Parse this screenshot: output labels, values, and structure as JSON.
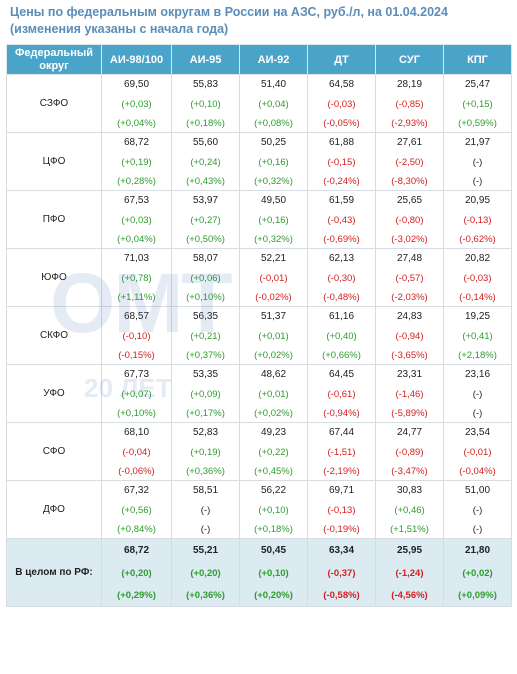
{
  "title_line1": "Цены по федеральным округам в России на АЗС, руб./л, на 01.04.2024",
  "title_line2": "(изменения указаны с начала года)",
  "watermark": {
    "text": "ОМТ",
    "sub": "20 ЛЕТ"
  },
  "colors": {
    "header_bg": "#4aa3c8",
    "positive": "#2e9c2e",
    "negative": "#d21f1f",
    "total_bg": "#dcebf1",
    "title": "#5b8db8"
  },
  "headers": [
    "Федеральный округ",
    "АИ-98/100",
    "АИ-95",
    "АИ-92",
    "ДТ",
    "СУГ",
    "КПГ"
  ],
  "rows": [
    {
      "region": "СЗФО",
      "cells": [
        {
          "v": "69,50",
          "d1": "(+0,03)",
          "d2": "(+0,04%)",
          "s1": "pos",
          "s2": "pos"
        },
        {
          "v": "55,83",
          "d1": "(+0,10)",
          "d2": "(+0,18%)",
          "s1": "pos",
          "s2": "pos"
        },
        {
          "v": "51,40",
          "d1": "(+0,04)",
          "d2": "(+0,08%)",
          "s1": "pos",
          "s2": "pos"
        },
        {
          "v": "64,58",
          "d1": "(-0,03)",
          "d2": "(-0,05%)",
          "s1": "neg",
          "s2": "neg"
        },
        {
          "v": "28,19",
          "d1": "(-0,85)",
          "d2": "(-2,93%)",
          "s1": "neg",
          "s2": "neg"
        },
        {
          "v": "25,47",
          "d1": "(+0,15)",
          "d2": "(+0,59%)",
          "s1": "pos",
          "s2": "pos"
        }
      ]
    },
    {
      "region": "ЦФО",
      "cells": [
        {
          "v": "68,72",
          "d1": "(+0,19)",
          "d2": "(+0,28%)",
          "s1": "pos",
          "s2": "pos"
        },
        {
          "v": "55,60",
          "d1": "(+0,24)",
          "d2": "(+0,43%)",
          "s1": "pos",
          "s2": "pos"
        },
        {
          "v": "50,25",
          "d1": "(+0,16)",
          "d2": "(+0,32%)",
          "s1": "pos",
          "s2": "pos"
        },
        {
          "v": "61,88",
          "d1": "(-0,15)",
          "d2": "(-0,24%)",
          "s1": "neg",
          "s2": "neg"
        },
        {
          "v": "27,61",
          "d1": "(-2,50)",
          "d2": "(-8,30%)",
          "s1": "neg",
          "s2": "neg"
        },
        {
          "v": "21,97",
          "d1": "(-)",
          "d2": "(-)",
          "s1": "neu",
          "s2": "neu"
        }
      ]
    },
    {
      "region": "ПФО",
      "cells": [
        {
          "v": "67,53",
          "d1": "(+0,03)",
          "d2": "(+0,04%)",
          "s1": "pos",
          "s2": "pos"
        },
        {
          "v": "53,97",
          "d1": "(+0,27)",
          "d2": "(+0,50%)",
          "s1": "pos",
          "s2": "pos"
        },
        {
          "v": "49,50",
          "d1": "(+0,16)",
          "d2": "(+0,32%)",
          "s1": "pos",
          "s2": "pos"
        },
        {
          "v": "61,59",
          "d1": "(-0,43)",
          "d2": "(-0,69%)",
          "s1": "neg",
          "s2": "neg"
        },
        {
          "v": "25,65",
          "d1": "(-0,80)",
          "d2": "(-3,02%)",
          "s1": "neg",
          "s2": "neg"
        },
        {
          "v": "20,95",
          "d1": "(-0,13)",
          "d2": "(-0,62%)",
          "s1": "neg",
          "s2": "neg"
        }
      ]
    },
    {
      "region": "ЮФО",
      "cells": [
        {
          "v": "71,03",
          "d1": "(+0,78)",
          "d2": "(+1,11%)",
          "s1": "pos",
          "s2": "pos"
        },
        {
          "v": "58,07",
          "d1": "(+0,06)",
          "d2": "(+0,10%)",
          "s1": "pos",
          "s2": "pos"
        },
        {
          "v": "52,21",
          "d1": "(-0,01)",
          "d2": "(-0,02%)",
          "s1": "neg",
          "s2": "neg"
        },
        {
          "v": "62,13",
          "d1": "(-0,30)",
          "d2": "(-0,48%)",
          "s1": "neg",
          "s2": "neg"
        },
        {
          "v": "27,48",
          "d1": "(-0,57)",
          "d2": "(-2,03%)",
          "s1": "neg",
          "s2": "neg"
        },
        {
          "v": "20,82",
          "d1": "(-0,03)",
          "d2": "(-0,14%)",
          "s1": "neg",
          "s2": "neg"
        }
      ]
    },
    {
      "region": "СКФО",
      "cells": [
        {
          "v": "68,57",
          "d1": "(-0,10)",
          "d2": "(-0,15%)",
          "s1": "neg",
          "s2": "neg"
        },
        {
          "v": "56,35",
          "d1": "(+0,21)",
          "d2": "(+0,37%)",
          "s1": "pos",
          "s2": "pos"
        },
        {
          "v": "51,37",
          "d1": "(+0,01)",
          "d2": "(+0,02%)",
          "s1": "pos",
          "s2": "pos"
        },
        {
          "v": "61,16",
          "d1": "(+0,40)",
          "d2": "(+0,66%)",
          "s1": "pos",
          "s2": "pos"
        },
        {
          "v": "24,83",
          "d1": "(-0,94)",
          "d2": "(-3,65%)",
          "s1": "neg",
          "s2": "neg"
        },
        {
          "v": "19,25",
          "d1": "(+0,41)",
          "d2": "(+2,18%)",
          "s1": "pos",
          "s2": "pos"
        }
      ]
    },
    {
      "region": "УФО",
      "cells": [
        {
          "v": "67,73",
          "d1": "(+0,07)",
          "d2": "(+0,10%)",
          "s1": "pos",
          "s2": "pos"
        },
        {
          "v": "53,35",
          "d1": "(+0,09)",
          "d2": "(+0,17%)",
          "s1": "pos",
          "s2": "pos"
        },
        {
          "v": "48,62",
          "d1": "(+0,01)",
          "d2": "(+0,02%)",
          "s1": "pos",
          "s2": "pos"
        },
        {
          "v": "64,45",
          "d1": "(-0,61)",
          "d2": "(-0,94%)",
          "s1": "neg",
          "s2": "neg"
        },
        {
          "v": "23,31",
          "d1": "(-1,46)",
          "d2": "(-5,89%)",
          "s1": "neg",
          "s2": "neg"
        },
        {
          "v": "23,16",
          "d1": "(-)",
          "d2": "(-)",
          "s1": "neu",
          "s2": "neu"
        }
      ]
    },
    {
      "region": "СФО",
      "cells": [
        {
          "v": "68,10",
          "d1": "(-0,04)",
          "d2": "(-0,06%)",
          "s1": "neg",
          "s2": "neg"
        },
        {
          "v": "52,83",
          "d1": "(+0,19)",
          "d2": "(+0,36%)",
          "s1": "pos",
          "s2": "pos"
        },
        {
          "v": "49,23",
          "d1": "(+0,22)",
          "d2": "(+0,45%)",
          "s1": "pos",
          "s2": "pos"
        },
        {
          "v": "67,44",
          "d1": "(-1,51)",
          "d2": "(-2,19%)",
          "s1": "neg",
          "s2": "neg"
        },
        {
          "v": "24,77",
          "d1": "(-0,89)",
          "d2": "(-3,47%)",
          "s1": "neg",
          "s2": "neg"
        },
        {
          "v": "23,54",
          "d1": "(-0,01)",
          "d2": "(-0,04%)",
          "s1": "neg",
          "s2": "neg"
        }
      ]
    },
    {
      "region": "ДФО",
      "cells": [
        {
          "v": "67,32",
          "d1": "(+0,56)",
          "d2": "(+0,84%)",
          "s1": "pos",
          "s2": "pos"
        },
        {
          "v": "58,51",
          "d1": "(-)",
          "d2": "(-)",
          "s1": "neu",
          "s2": "neu"
        },
        {
          "v": "56,22",
          "d1": "(+0,10)",
          "d2": "(+0,18%)",
          "s1": "pos",
          "s2": "pos"
        },
        {
          "v": "69,71",
          "d1": "(-0,13)",
          "d2": "(-0,19%)",
          "s1": "neg",
          "s2": "neg"
        },
        {
          "v": "30,83",
          "d1": "(+0,46)",
          "d2": "(+1,51%)",
          "s1": "pos",
          "s2": "pos"
        },
        {
          "v": "51,00",
          "d1": "(-)",
          "d2": "(-)",
          "s1": "neu",
          "s2": "neu"
        }
      ]
    }
  ],
  "total": {
    "region": "В целом по РФ:",
    "cells": [
      {
        "v": "68,72",
        "d1": "(+0,20)",
        "d2": "(+0,29%)",
        "s1": "pos",
        "s2": "pos"
      },
      {
        "v": "55,21",
        "d1": "(+0,20)",
        "d2": "(+0,36%)",
        "s1": "pos",
        "s2": "pos"
      },
      {
        "v": "50,45",
        "d1": "(+0,10)",
        "d2": "(+0,20%)",
        "s1": "pos",
        "s2": "pos"
      },
      {
        "v": "63,34",
        "d1": "(-0,37)",
        "d2": "(-0,58%)",
        "s1": "neg",
        "s2": "neg"
      },
      {
        "v": "25,95",
        "d1": "(-1,24)",
        "d2": "(-4,56%)",
        "s1": "neg",
        "s2": "neg"
      },
      {
        "v": "21,80",
        "d1": "(+0,02)",
        "d2": "(+0,09%)",
        "s1": "pos",
        "s2": "pos"
      }
    ]
  }
}
